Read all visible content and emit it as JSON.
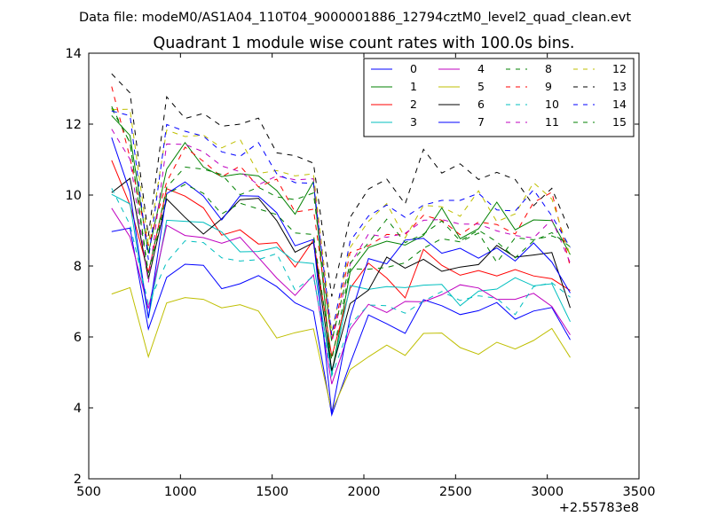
{
  "suptitle": "Data file: modeM0/AS1A04_110T04_9000001886_12794cztM0_level2_quad_clean.evt",
  "chart_data": {
    "type": "line",
    "title": "Quadrant 1 module wise count rates with 100.0s bins.",
    "xlabel": "",
    "ylabel": "",
    "x_offset_label": "+2.55783e8",
    "xlim": [
      500,
      3500
    ],
    "ylim": [
      2,
      14
    ],
    "xticks": [
      500,
      1000,
      1500,
      2000,
      2500,
      3000,
      3500
    ],
    "yticks": [
      2,
      4,
      6,
      8,
      10,
      12,
      14
    ],
    "grid": false,
    "legend_position": "top-right",
    "legend_columns": 4,
    "x": [
      625,
      725,
      825,
      925,
      1025,
      1125,
      1225,
      1325,
      1425,
      1525,
      1625,
      1725,
      1825,
      1925,
      2025,
      2125,
      2225,
      2325,
      2425,
      2525,
      2625,
      2725,
      2825,
      2925,
      3025,
      3125
    ],
    "series": [
      {
        "name": "0",
        "color": "#0000ff",
        "dash": "solid",
        "values": [
          8.97,
          9.07,
          6.22,
          7.68,
          8.05,
          8.02,
          7.36,
          7.5,
          7.73,
          7.42,
          6.96,
          6.72,
          3.8,
          5.25,
          6.62,
          6.37,
          6.1,
          7.05,
          6.88,
          6.63,
          6.74,
          6.97,
          6.5,
          6.73,
          6.83,
          5.92
        ]
      },
      {
        "name": "1",
        "color": "#008000",
        "dash": "solid",
        "values": [
          12.24,
          11.68,
          8.36,
          10.73,
          11.48,
          10.79,
          10.52,
          10.6,
          10.54,
          10.13,
          9.46,
          10.38,
          4.95,
          7.83,
          8.52,
          8.7,
          8.59,
          8.86,
          9.64,
          8.77,
          9.05,
          9.8,
          9.02,
          9.3,
          9.28,
          8.32
        ]
      },
      {
        "name": "2",
        "color": "#ff0000",
        "dash": "solid",
        "values": [
          10.98,
          9.72,
          7.82,
          10.18,
          9.97,
          9.64,
          8.87,
          9.02,
          8.62,
          8.66,
          7.97,
          8.73,
          5.45,
          7.37,
          8.08,
          7.66,
          7.1,
          8.47,
          8.02,
          7.74,
          7.87,
          7.72,
          7.9,
          7.72,
          7.64,
          7.31
        ]
      },
      {
        "name": "3",
        "color": "#00bfbf",
        "dash": "solid",
        "values": [
          10.02,
          9.75,
          6.52,
          9.29,
          9.26,
          9.23,
          8.96,
          8.4,
          8.41,
          8.53,
          8.12,
          8.07,
          4.95,
          7.45,
          7.34,
          7.42,
          7.39,
          7.46,
          7.48,
          6.88,
          7.29,
          7.35,
          7.67,
          7.44,
          7.5,
          6.43
        ]
      },
      {
        "name": "4",
        "color": "#bf00bf",
        "dash": "solid",
        "values": [
          9.63,
          8.82,
          6.8,
          9.15,
          8.86,
          8.8,
          8.64,
          8.81,
          8.24,
          7.66,
          7.17,
          7.75,
          4.67,
          6.22,
          6.92,
          6.69,
          7.0,
          6.99,
          7.19,
          7.47,
          7.38,
          7.06,
          7.06,
          7.23,
          6.86,
          6.06
        ]
      },
      {
        "name": "5",
        "color": "#bfbf00",
        "dash": "solid",
        "values": [
          7.21,
          7.39,
          5.44,
          6.96,
          7.11,
          7.06,
          6.82,
          6.91,
          6.73,
          5.97,
          6.12,
          6.23,
          3.9,
          5.08,
          5.44,
          5.77,
          5.48,
          6.1,
          6.11,
          5.7,
          5.51,
          5.85,
          5.66,
          5.9,
          6.24,
          5.42
        ]
      },
      {
        "name": "6",
        "color": "#000000",
        "dash": "solid",
        "values": [
          10.07,
          10.47,
          7.63,
          9.89,
          9.37,
          8.9,
          9.33,
          9.87,
          9.91,
          9.28,
          8.39,
          8.66,
          5.05,
          6.94,
          7.32,
          8.25,
          7.94,
          8.19,
          7.85,
          7.97,
          8.04,
          8.58,
          8.25,
          8.31,
          8.38,
          6.82
        ]
      },
      {
        "name": "7",
        "color": "#0000ff",
        "dash": "solid",
        "values": [
          11.62,
          10.08,
          6.54,
          10.04,
          10.37,
          9.97,
          9.3,
          9.98,
          9.97,
          9.5,
          8.57,
          8.75,
          3.85,
          6.56,
          8.21,
          8.06,
          8.73,
          8.78,
          8.36,
          8.5,
          8.22,
          8.51,
          8.14,
          8.65,
          8.11,
          7.24
        ]
      },
      {
        "name": "8",
        "color": "#008000",
        "dash": "dashed",
        "values": [
          12.44,
          11.48,
          7.67,
          10.03,
          10.3,
          10.05,
          9.47,
          9.77,
          9.61,
          9.45,
          8.93,
          8.89,
          5.35,
          7.92,
          7.91,
          7.96,
          8.09,
          8.5,
          8.77,
          8.68,
          8.93,
          8.1,
          8.8,
          8.74,
          8.85,
          8.64
        ]
      },
      {
        "name": "9",
        "color": "#ff0000",
        "dash": "dashed",
        "values": [
          13.06,
          11.05,
          8.57,
          10.37,
          11.35,
          10.95,
          10.51,
          10.82,
          10.23,
          10.45,
          9.52,
          9.6,
          5.91,
          8.38,
          8.57,
          8.89,
          8.88,
          9.43,
          9.29,
          8.88,
          9.24,
          9.17,
          8.9,
          9.79,
          10.08,
          7.98
        ]
      },
      {
        "name": "10",
        "color": "#00bfbf",
        "dash": "dashed",
        "values": [
          10.19,
          9.16,
          6.93,
          8.11,
          8.71,
          8.66,
          8.23,
          8.14,
          8.18,
          8.35,
          7.32,
          7.71,
          4.9,
          6.35,
          6.9,
          6.88,
          6.67,
          7.01,
          7.28,
          7.03,
          7.16,
          7.09,
          6.63,
          7.42,
          7.53,
          7.12
        ]
      },
      {
        "name": "11",
        "color": "#bf00bf",
        "dash": "dashed",
        "values": [
          11.86,
          11.01,
          7.54,
          11.44,
          11.43,
          11.22,
          10.82,
          10.66,
          10.29,
          10.54,
          10.43,
          10.46,
          5.85,
          8.05,
          8.9,
          8.81,
          8.92,
          9.29,
          9.31,
          9.18,
          9.18,
          8.99,
          8.86,
          8.79,
          9.31,
          8.09
        ]
      },
      {
        "name": "12",
        "color": "#bfbf00",
        "dash": "dashed",
        "values": [
          12.41,
          12.42,
          8.61,
          11.83,
          11.65,
          11.69,
          11.33,
          11.57,
          10.61,
          10.69,
          10.54,
          10.6,
          6.13,
          8.52,
          9.26,
          9.76,
          8.79,
          9.71,
          9.67,
          9.4,
          10.12,
          9.25,
          9.47,
          10.35,
          9.89,
          8.29
        ]
      },
      {
        "name": "13",
        "color": "#000000",
        "dash": "dashed",
        "values": [
          13.42,
          12.88,
          8.85,
          12.77,
          12.16,
          12.3,
          11.94,
          12.0,
          12.17,
          11.19,
          11.11,
          10.9,
          7.14,
          9.37,
          10.17,
          10.45,
          9.75,
          11.29,
          10.62,
          10.88,
          10.44,
          10.64,
          10.44,
          9.7,
          10.19,
          8.95
        ]
      },
      {
        "name": "14",
        "color": "#0000ff",
        "dash": "dashed",
        "values": [
          12.37,
          12.24,
          8.18,
          11.99,
          11.8,
          11.66,
          11.22,
          11.09,
          11.48,
          10.6,
          10.35,
          10.33,
          6.05,
          8.7,
          9.41,
          9.72,
          9.37,
          9.72,
          9.85,
          9.85,
          10.05,
          9.58,
          9.55,
          10.15,
          9.41,
          8.52
        ]
      },
      {
        "name": "15",
        "color": "#008000",
        "dash": "dashed",
        "values": [
          12.5,
          11.47,
          7.8,
          10.22,
          10.79,
          10.73,
          10.58,
          10.01,
          10.22,
          9.95,
          9.87,
          10.06,
          5.88,
          8.08,
          8.65,
          9.32,
          8.66,
          8.9,
          9.27,
          8.71,
          9.01,
          8.68,
          8.23,
          8.71,
          8.94,
          8.54
        ]
      }
    ]
  }
}
